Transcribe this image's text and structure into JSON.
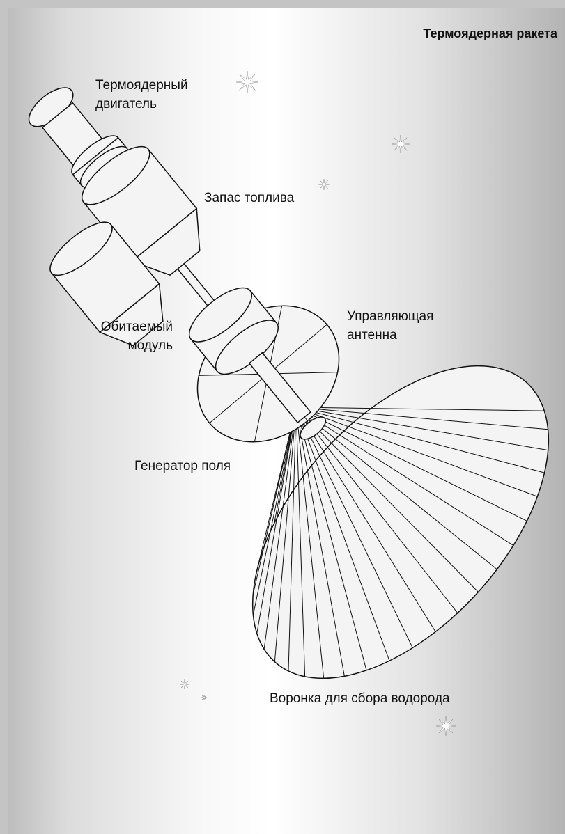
{
  "title": "Термоядерная ракета",
  "labels": [
    {
      "lines": [
        "Термоядерный",
        "двигатель"
      ]
    },
    {
      "lines": [
        "Запас топлива"
      ]
    },
    {
      "lines": [
        "Обитаемый",
        "модуль"
      ]
    },
    {
      "lines": [
        "Управляющая",
        "антенна"
      ]
    },
    {
      "lines": [
        "Генератор поля"
      ]
    },
    {
      "lines": [
        "Воронка для сбора водорода"
      ]
    }
  ]
}
